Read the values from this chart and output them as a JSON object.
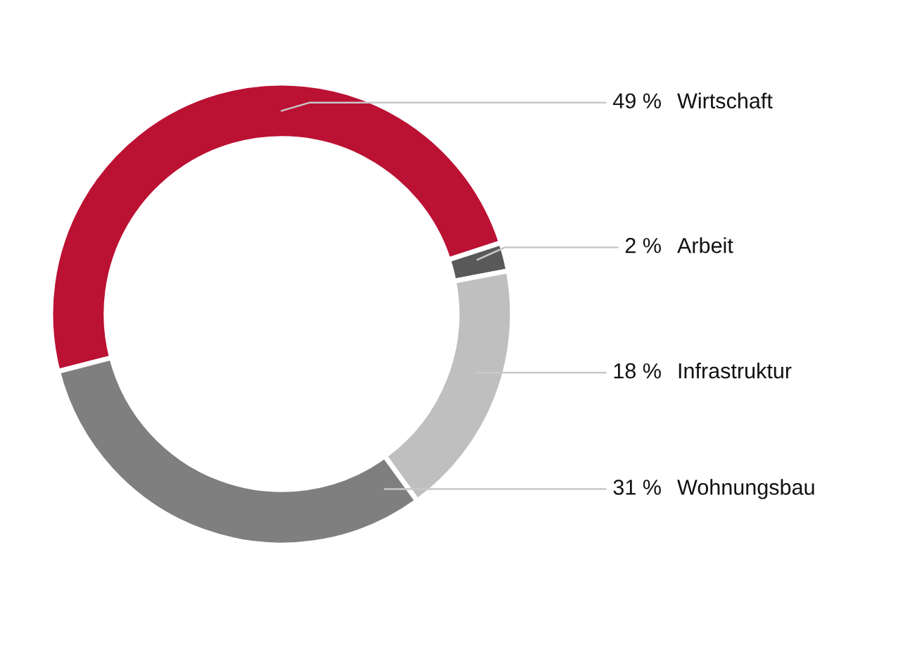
{
  "chart_data": {
    "type": "donut",
    "categories": [
      "Wirtschaft",
      "Arbeit",
      "Infrastruktur",
      "Wohnungsbau"
    ],
    "values": [
      49,
      2,
      18,
      31
    ],
    "colors": [
      "#bb1133",
      "#595959",
      "#bfbfbf",
      "#7f7f7f"
    ],
    "value_labels": [
      "49 %",
      "2 %",
      "18 %",
      "31 %"
    ]
  }
}
